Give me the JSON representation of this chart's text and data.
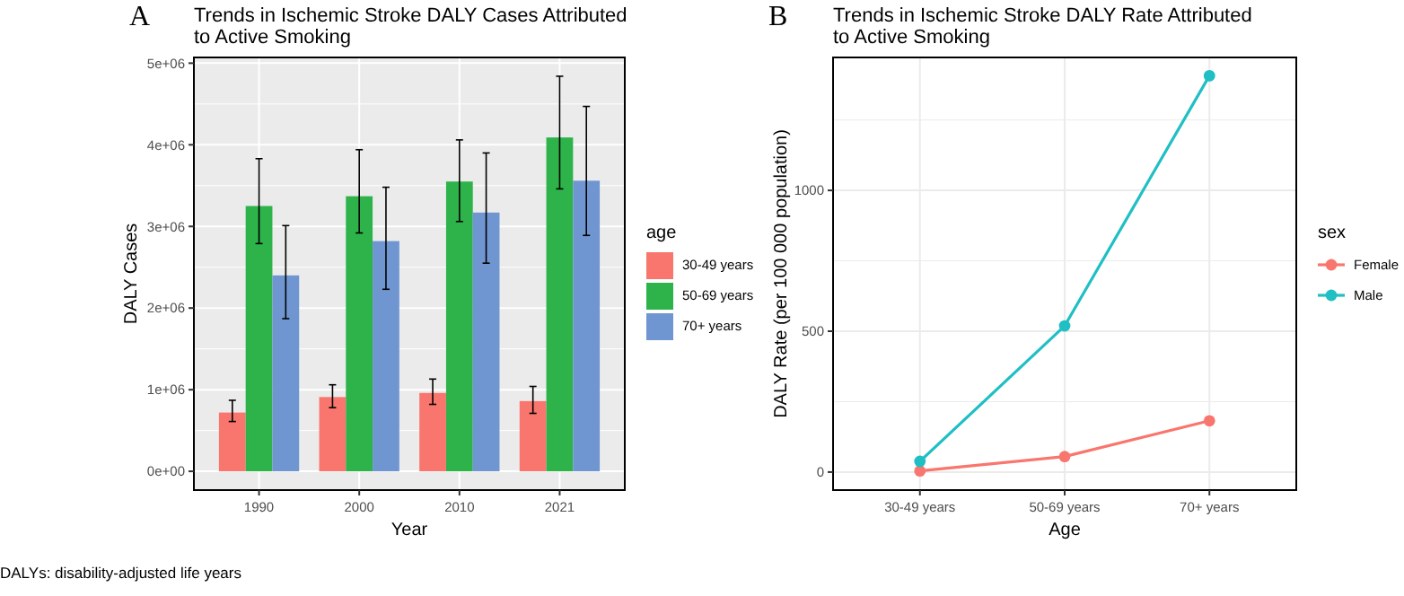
{
  "chart_data": [
    {
      "type": "bar",
      "title": "Trends in Ischemic Stroke DALY Cases Attributed to Active Smoking",
      "xlabel": "Year",
      "ylabel": "DALY Cases",
      "legend_title": "age",
      "categories": [
        "1990",
        "2000",
        "2010",
        "2021"
      ],
      "series": [
        {
          "name": "30-49 years",
          "color": "#f8766d",
          "values": [
            720000,
            910000,
            960000,
            860000
          ],
          "errors": [
            [
              610000,
              870000
            ],
            [
              780000,
              1060000
            ],
            [
              820000,
              1130000
            ],
            [
              710000,
              1040000
            ]
          ]
        },
        {
          "name": "50-69 years",
          "color": "#2db34a",
          "values": [
            3250000,
            3370000,
            3550000,
            4090000
          ],
          "errors": [
            [
              2790000,
              3830000
            ],
            [
              2920000,
              3940000
            ],
            [
              3060000,
              4060000
            ],
            [
              3460000,
              4840000
            ]
          ]
        },
        {
          "name": "70+ years",
          "color": "#6f96d1",
          "values": [
            2400000,
            2820000,
            3170000,
            3560000
          ],
          "errors": [
            [
              1870000,
              3010000
            ],
            [
              2230000,
              3480000
            ],
            [
              2550000,
              3900000
            ],
            [
              2890000,
              4470000
            ]
          ]
        }
      ],
      "ylim": [
        -230000,
        5070000
      ],
      "yticks": [
        {
          "value": 0,
          "label": "0e+00"
        },
        {
          "value": 1000000,
          "label": "1e+06"
        },
        {
          "value": 2000000,
          "label": "2e+06"
        },
        {
          "value": 3000000,
          "label": "3e+06"
        },
        {
          "value": 4000000,
          "label": "4e+06"
        },
        {
          "value": 5000000,
          "label": "5e+06"
        }
      ],
      "grid": true,
      "legend": "right",
      "annotations": [
        "A",
        "DALYs: disability-adjusted life years"
      ]
    },
    {
      "type": "line",
      "title": "Trends in Ischemic Stroke DALY Rate Attributed to Active Smoking",
      "xlabel": "Age",
      "ylabel": "DALY Rate (per 100 000 population)",
      "legend_title": "sex",
      "categories": [
        "30-49 years",
        "50-69 years",
        "70+ years"
      ],
      "series": [
        {
          "name": "Female",
          "color": "#f8766d",
          "values": [
            4,
            55,
            182
          ]
        },
        {
          "name": "Male",
          "color": "#1fbfc4",
          "values": [
            38,
            519,
            1407
          ]
        }
      ],
      "ylim": [
        -64,
        1472
      ],
      "yticks": [
        0,
        500,
        1000
      ],
      "grid": true,
      "legend": "right",
      "marker": "circle",
      "line_style": "solid",
      "annotations": [
        "B"
      ]
    }
  ]
}
